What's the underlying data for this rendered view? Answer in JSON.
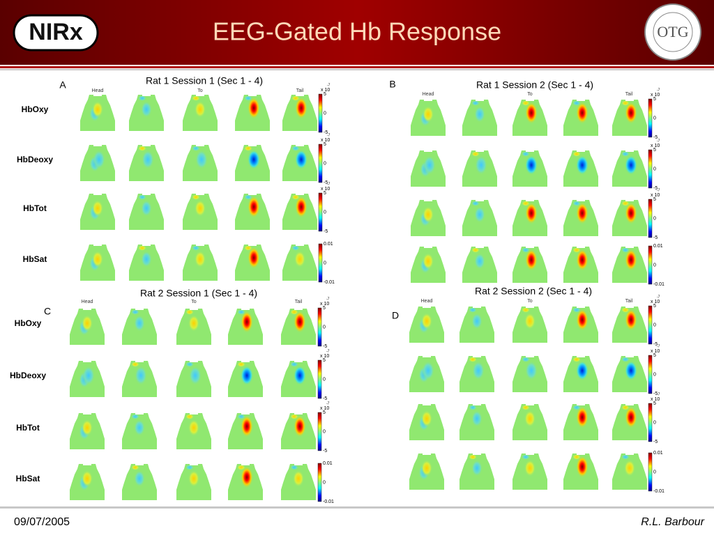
{
  "header": {
    "title": "EEG-Gated Hb Response",
    "logo_left": "NIRx",
    "logo_right": "OTG"
  },
  "panels": [
    {
      "letter": "A",
      "title": "Rat 1 Session 1 (Sec 1 - 4)",
      "columns": [
        "Head",
        "To",
        "Tail"
      ],
      "rows": [
        "HbOxy",
        "HbDeoxy",
        "HbTot",
        "HbSat"
      ],
      "colorbars": [
        {
          "exponent_base": "x 10",
          "exponent": "-7",
          "ticks": [
            "5",
            "0",
            "-5"
          ]
        },
        {
          "exponent_base": "x 10",
          "exponent": "-7",
          "ticks": [
            "5",
            "0",
            "-5"
          ]
        },
        {
          "exponent_base": "x 10",
          "exponent": "-7",
          "ticks": [
            "5",
            "0",
            "-5"
          ]
        },
        {
          "ticks": [
            "0.01",
            "0",
            "-0.01"
          ]
        }
      ]
    },
    {
      "letter": "B",
      "title": "Rat 1 Session 2 (Sec 1 - 4)",
      "columns": [
        "Head",
        "To",
        "Tail"
      ],
      "colorbars": [
        {
          "exponent_base": "x 10",
          "exponent": "-7",
          "ticks": [
            "5",
            "0",
            "-5"
          ]
        },
        {
          "exponent_base": "x 10",
          "exponent": "-7",
          "ticks": [
            "5",
            "0",
            "-5"
          ]
        },
        {
          "exponent_base": "x 10",
          "exponent": "-7",
          "ticks": [
            "5",
            "0",
            "-5"
          ]
        },
        {
          "ticks": [
            "0.01",
            "0",
            "-0.01"
          ]
        }
      ]
    },
    {
      "letter": "C",
      "title": "Rat 2 Session 1 (Sec 1 - 4)",
      "columns": [
        "Head",
        "To",
        "Tail"
      ],
      "rows": [
        "HbOxy",
        "HbDeoxy",
        "HbTot",
        "HbSat"
      ],
      "colorbars": [
        {
          "exponent_base": "x 10",
          "exponent": "-7",
          "ticks": [
            "5",
            "0",
            "-5"
          ]
        },
        {
          "exponent_base": "x 10",
          "exponent": "-7",
          "ticks": [
            "5",
            "0",
            "-5"
          ]
        },
        {
          "exponent_base": "x 10",
          "exponent": "-7",
          "ticks": [
            "5",
            "0",
            "-5"
          ]
        },
        {
          "ticks": [
            "0.01",
            "0",
            "-0.01"
          ]
        }
      ]
    },
    {
      "letter": "D",
      "title": "Rat 2 Session 2 (Sec 1 - 4)",
      "columns": [
        "Head",
        "To",
        "Tail"
      ],
      "colorbars": [
        {
          "exponent_base": "x 10",
          "exponent": "-7",
          "ticks": [
            "5",
            "0",
            "-5"
          ]
        },
        {
          "exponent_base": "x 10",
          "exponent": "-7",
          "ticks": [
            "5",
            "0",
            "-5"
          ]
        },
        {
          "exponent_base": "x 10",
          "exponent": "-7",
          "ticks": [
            "5",
            "0",
            "-5"
          ]
        },
        {
          "ticks": [
            "0.01",
            "0",
            "-0.01"
          ]
        }
      ]
    }
  ],
  "footer": {
    "date": "09/07/2005",
    "author": "R.L. Barbour"
  }
}
